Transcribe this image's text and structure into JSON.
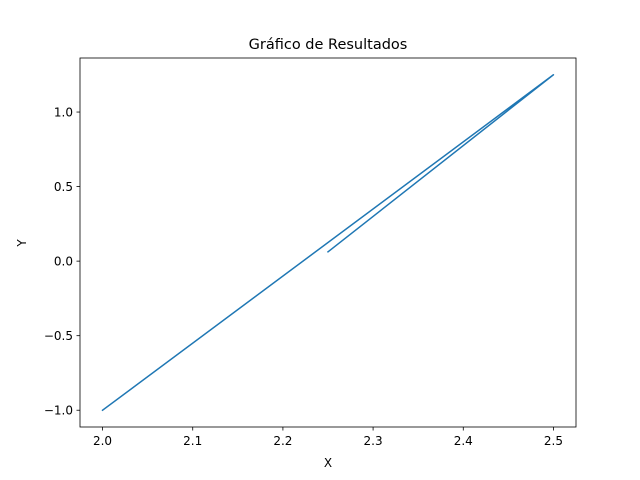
{
  "chart_data": {
    "type": "line",
    "title": "Gráfico de Resultados",
    "xlabel": "X",
    "ylabel": "Y",
    "xlim": [
      1.975,
      2.525
    ],
    "ylim": [
      -1.1125,
      1.3625
    ],
    "xticks": [
      2.0,
      2.1,
      2.2,
      2.3,
      2.4,
      2.5
    ],
    "xtick_labels": [
      "2.0",
      "2.1",
      "2.2",
      "2.3",
      "2.4",
      "2.5"
    ],
    "yticks": [
      -1.0,
      -0.5,
      0.0,
      0.5,
      1.0
    ],
    "ytick_labels": [
      "−1.0",
      "−0.5",
      "0.0",
      "0.5",
      "1.0"
    ],
    "grid": false,
    "series": [
      {
        "color": "#1f77b4",
        "x": [
          2.0,
          2.5,
          2.25
        ],
        "y": [
          -1.0,
          1.25,
          0.0625
        ]
      }
    ]
  }
}
